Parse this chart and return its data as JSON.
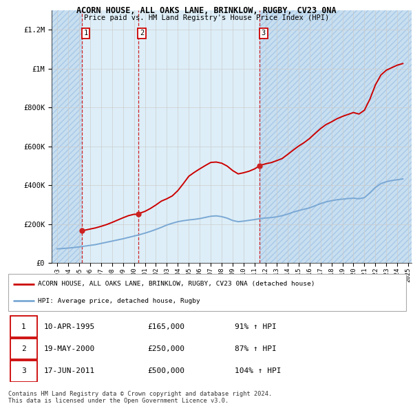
{
  "title1": "ACORN HOUSE, ALL OAKS LANE, BRINKLOW, RUGBY, CV23 0NA",
  "title2": "Price paid vs. HM Land Registry's House Price Index (HPI)",
  "ylim": [
    0,
    1300000
  ],
  "yticks": [
    0,
    200000,
    400000,
    600000,
    800000,
    1000000,
    1200000
  ],
  "ytick_labels": [
    "£0",
    "£200K",
    "£400K",
    "£600K",
    "£800K",
    "£1M",
    "£1.2M"
  ],
  "x_start_year": 1993,
  "x_end_year": 2025,
  "xtick_years": [
    1993,
    1994,
    1995,
    1996,
    1997,
    1998,
    1999,
    2000,
    2001,
    2002,
    2003,
    2004,
    2005,
    2006,
    2007,
    2008,
    2009,
    2010,
    2011,
    2012,
    2013,
    2014,
    2015,
    2016,
    2017,
    2018,
    2019,
    2020,
    2021,
    2022,
    2023,
    2024,
    2025
  ],
  "sale_dates": [
    1995.27,
    2000.38,
    2011.46
  ],
  "sale_prices": [
    165000,
    250000,
    500000
  ],
  "sale_labels": [
    "1",
    "2",
    "3"
  ],
  "hpi_line_color": "#7aa8d4",
  "price_line_color": "#cc0000",
  "dashed_line_color": "#cc0000",
  "sale_marker_color": "#cc2222",
  "grid_color": "#cccccc",
  "legend_line1": "ACORN HOUSE, ALL OAKS LANE, BRINKLOW, RUGBY, CV23 0NA (detached house)",
  "legend_line2": "HPI: Average price, detached house, Rugby",
  "table_rows": [
    [
      "1",
      "10-APR-1995",
      "£165,000",
      "91% ↑ HPI"
    ],
    [
      "2",
      "19-MAY-2000",
      "£250,000",
      "87% ↑ HPI"
    ],
    [
      "3",
      "17-JUN-2011",
      "£500,000",
      "104% ↑ HPI"
    ]
  ],
  "footer_text": "Contains HM Land Registry data © Crown copyright and database right 2024.\nThis data is licensed under the Open Government Licence v3.0.",
  "hpi_data_x": [
    1993.0,
    1993.5,
    1994.0,
    1994.5,
    1995.0,
    1995.5,
    1996.0,
    1996.5,
    1997.0,
    1997.5,
    1998.0,
    1998.5,
    1999.0,
    1999.5,
    2000.0,
    2000.5,
    2001.0,
    2001.5,
    2002.0,
    2002.5,
    2003.0,
    2003.5,
    2004.0,
    2004.5,
    2005.0,
    2005.5,
    2006.0,
    2006.5,
    2007.0,
    2007.5,
    2008.0,
    2008.5,
    2009.0,
    2009.5,
    2010.0,
    2010.5,
    2011.0,
    2011.5,
    2012.0,
    2012.5,
    2013.0,
    2013.5,
    2014.0,
    2014.5,
    2015.0,
    2015.5,
    2016.0,
    2016.5,
    2017.0,
    2017.5,
    2018.0,
    2018.5,
    2019.0,
    2019.5,
    2020.0,
    2020.5,
    2021.0,
    2021.5,
    2022.0,
    2022.5,
    2023.0,
    2023.5,
    2024.0,
    2024.5
  ],
  "hpi_data_y": [
    72000,
    74000,
    76000,
    79000,
    82000,
    86000,
    90000,
    94000,
    100000,
    106000,
    112000,
    118000,
    124000,
    131000,
    138000,
    145000,
    153000,
    162000,
    172000,
    183000,
    195000,
    204000,
    212000,
    217000,
    221000,
    224000,
    228000,
    234000,
    240000,
    242000,
    238000,
    230000,
    218000,
    212000,
    215000,
    219000,
    223000,
    228000,
    231000,
    233000,
    237000,
    243000,
    251000,
    261000,
    269000,
    276000,
    283000,
    294000,
    305000,
    314000,
    320000,
    325000,
    328000,
    331000,
    333000,
    330000,
    336000,
    360000,
    388000,
    408000,
    418000,
    424000,
    428000,
    432000
  ],
  "price_data_x": [
    1995.27,
    1995.5,
    1996.0,
    1996.5,
    1997.0,
    1997.5,
    1998.0,
    1998.5,
    1999.0,
    1999.5,
    2000.0,
    2000.38,
    2000.5,
    2001.0,
    2001.5,
    2002.0,
    2002.5,
    2003.0,
    2003.5,
    2004.0,
    2004.5,
    2005.0,
    2005.5,
    2006.0,
    2006.5,
    2007.0,
    2007.5,
    2008.0,
    2008.5,
    2009.0,
    2009.5,
    2010.0,
    2010.5,
    2011.0,
    2011.46,
    2011.5,
    2012.0,
    2012.5,
    2013.0,
    2013.5,
    2014.0,
    2014.5,
    2015.0,
    2015.5,
    2016.0,
    2016.5,
    2017.0,
    2017.5,
    2018.0,
    2018.5,
    2019.0,
    2019.5,
    2020.0,
    2020.5,
    2021.0,
    2021.5,
    2022.0,
    2022.5,
    2023.0,
    2023.5,
    2024.0,
    2024.5
  ],
  "price_data_y": [
    165000,
    168000,
    174000,
    180000,
    188000,
    197000,
    208000,
    220000,
    232000,
    243000,
    250000,
    250000,
    255000,
    265000,
    280000,
    298000,
    318000,
    330000,
    345000,
    372000,
    408000,
    446000,
    466000,
    484000,
    501000,
    517000,
    519000,
    513000,
    498000,
    475000,
    458000,
    464000,
    472000,
    484000,
    500000,
    502000,
    510000,
    516000,
    526000,
    537000,
    558000,
    580000,
    601000,
    619000,
    640000,
    666000,
    691000,
    712000,
    726000,
    742000,
    754000,
    764000,
    774000,
    766000,
    786000,
    843000,
    916000,
    967000,
    992000,
    1005000,
    1018000,
    1026000
  ]
}
